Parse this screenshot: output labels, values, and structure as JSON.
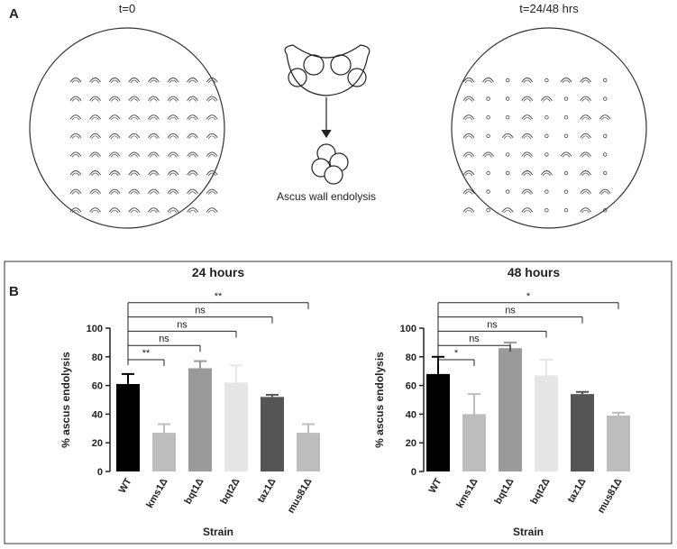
{
  "panel_a": {
    "label": "A",
    "left_title": "t=0",
    "right_title": "t=24/48 hrs",
    "caption": "Ascus wall endolysis"
  },
  "panel_b": {
    "label": "B"
  },
  "chart_data": [
    {
      "type": "bar",
      "title": "24 hours",
      "y_label": "% ascus endolysis",
      "x_label": "Strain",
      "categories": [
        "WT",
        "kms1Δ",
        "bqt1Δ",
        "bqt2Δ",
        "taz1Δ",
        "mus81Δ"
      ],
      "values": [
        61,
        27,
        72,
        62,
        52,
        27
      ],
      "errors": [
        7,
        6,
        5,
        12,
        1.5,
        6
      ],
      "colors": [
        "#000000",
        "#bdbdbd",
        "#9a9a9a",
        "#e6e6e6",
        "#555555",
        "#bdbdbd"
      ],
      "significance": [
        null,
        "**",
        "ns",
        "ns",
        "ns",
        "**"
      ],
      "ylim": [
        0,
        100
      ],
      "yticks": [
        0,
        20,
        40,
        60,
        80,
        100
      ]
    },
    {
      "type": "bar",
      "title": "48 hours",
      "y_label": "% ascus endolysis",
      "x_label": "Strain",
      "categories": [
        "WT",
        "kms1Δ",
        "bqt1Δ",
        "bqt2Δ",
        "taz1Δ",
        "mus81Δ"
      ],
      "values": [
        68,
        40,
        86,
        67,
        54,
        39
      ],
      "errors": [
        12,
        14,
        4,
        11,
        1.5,
        2
      ],
      "colors": [
        "#000000",
        "#bdbdbd",
        "#9a9a9a",
        "#e6e6e6",
        "#555555",
        "#bdbdbd"
      ],
      "significance": [
        null,
        "*",
        "ns",
        "ns",
        "ns",
        "*"
      ],
      "ylim": [
        0,
        100
      ],
      "yticks": [
        0,
        20,
        40,
        60,
        80,
        100
      ]
    }
  ]
}
